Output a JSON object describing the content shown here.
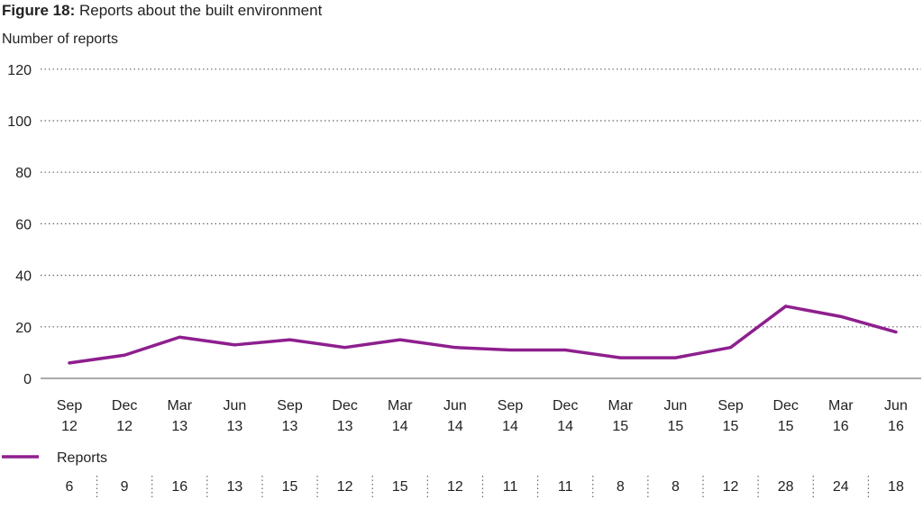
{
  "chart_data": {
    "type": "line",
    "title_bold": "Figure 18:",
    "title": "Reports about the built environment",
    "ylabel": "Number of reports",
    "xlabel": "",
    "ylim": [
      0,
      120
    ],
    "yticks": [
      0,
      20,
      40,
      60,
      80,
      100,
      120
    ],
    "grid": true,
    "legend_position": "bottom-left",
    "categories": [
      [
        "Sep",
        "12"
      ],
      [
        "Dec",
        "12"
      ],
      [
        "Mar",
        "13"
      ],
      [
        "Jun",
        "13"
      ],
      [
        "Sep",
        "13"
      ],
      [
        "Dec",
        "13"
      ],
      [
        "Mar",
        "14"
      ],
      [
        "Jun",
        "14"
      ],
      [
        "Sep",
        "14"
      ],
      [
        "Dec",
        "14"
      ],
      [
        "Mar",
        "15"
      ],
      [
        "Jun",
        "15"
      ],
      [
        "Sep",
        "15"
      ],
      [
        "Dec",
        "15"
      ],
      [
        "Mar",
        "16"
      ],
      [
        "Jun",
        "16"
      ]
    ],
    "series": [
      {
        "name": "Reports",
        "color": "#8e1f8e",
        "values": [
          6,
          9,
          16,
          13,
          15,
          12,
          15,
          12,
          11,
          11,
          8,
          8,
          12,
          28,
          24,
          18
        ]
      }
    ]
  }
}
